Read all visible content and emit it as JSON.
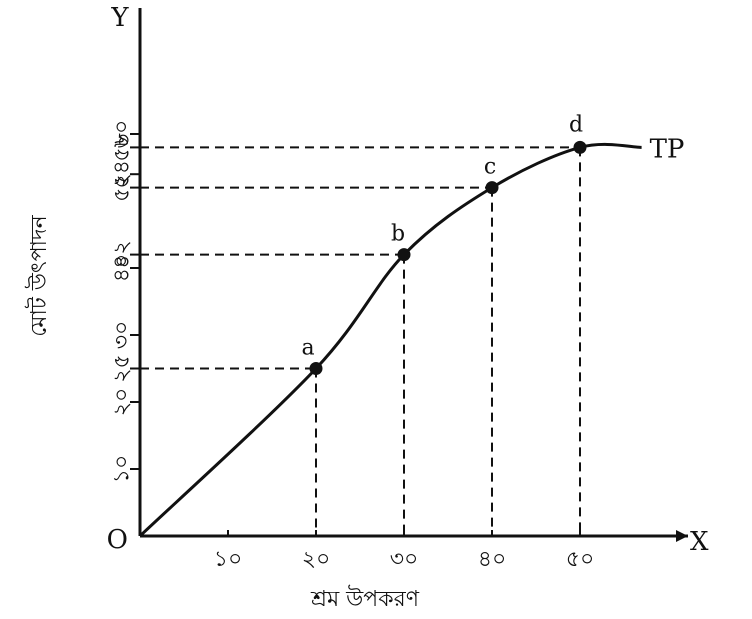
{
  "chart_data": {
    "type": "line",
    "xlabel": "শ্রম উপকরণ",
    "ylabel": "মোট উৎপাদন",
    "origin_label": "O",
    "x_axis_letter": "X",
    "y_axis_letter": "Y",
    "curve_label": "TP",
    "x_ticks": [
      {
        "value": 10,
        "label": "১০"
      },
      {
        "value": 20,
        "label": "২০"
      },
      {
        "value": 30,
        "label": "৩০"
      },
      {
        "value": 40,
        "label": "৪০"
      },
      {
        "value": 50,
        "label": "৫০"
      }
    ],
    "y_ticks": [
      {
        "value": 10,
        "label": "১০"
      },
      {
        "value": 20,
        "label": "২০"
      },
      {
        "value": 25,
        "label": "২৫"
      },
      {
        "value": 30,
        "label": "৩০"
      },
      {
        "value": 40,
        "label": "৪০"
      },
      {
        "value": 42,
        "label": "৪২"
      },
      {
        "value": 52,
        "label": "৫২"
      },
      {
        "value": 54,
        "label": "৫৪"
      },
      {
        "value": 58,
        "label": "৫৮"
      },
      {
        "value": 60,
        "label": "৬০"
      }
    ],
    "points": [
      {
        "label": "a",
        "x": 20,
        "y": 25
      },
      {
        "label": "b",
        "x": 30,
        "y": 42
      },
      {
        "label": "c",
        "x": 40,
        "y": 52
      },
      {
        "label": "d",
        "x": 50,
        "y": 58
      }
    ],
    "curve": [
      {
        "x": 0,
        "y": 0
      },
      {
        "x": 20,
        "y": 25
      },
      {
        "x": 30,
        "y": 42
      },
      {
        "x": 40,
        "y": 52
      },
      {
        "x": 50,
        "y": 58
      },
      {
        "x": 57,
        "y": 58
      }
    ],
    "xlim": [
      0,
      60
    ],
    "ylim": [
      0,
      76
    ],
    "grid": false,
    "guides": "dashed"
  }
}
